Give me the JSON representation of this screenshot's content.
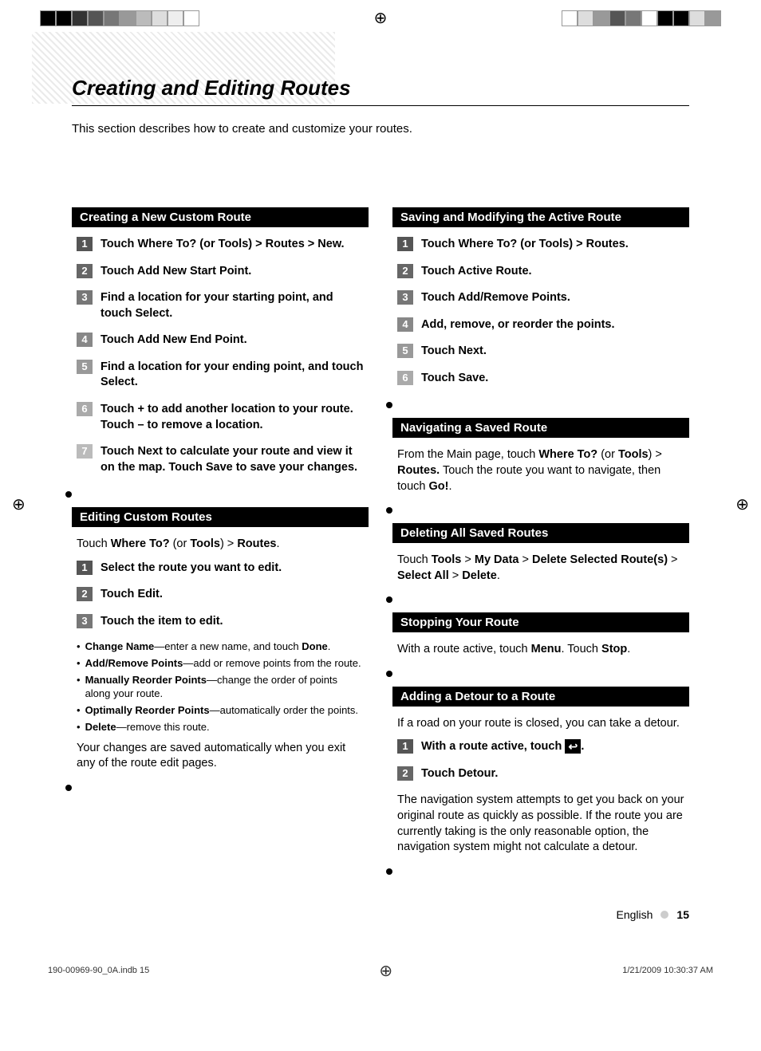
{
  "colorBars": {
    "left": [
      "#000000",
      "#000000",
      "#333333",
      "#555555",
      "#777777",
      "#999999",
      "#bbbbbb",
      "#dddddd",
      "#eeeeee",
      "#ffffff"
    ],
    "right": [
      "#ffffff",
      "#dddddd",
      "#999999",
      "#555555",
      "#777777",
      "#ffffff",
      "#000000",
      "#000000",
      "#dddddd",
      "#999999"
    ]
  },
  "stepColors": [
    "#555555",
    "#666666",
    "#777777",
    "#888888",
    "#999999",
    "#aaaaaa",
    "#bbbbbb"
  ],
  "pageTitle": "Creating and Editing Routes",
  "intro": "This section describes how to create and customize your routes.",
  "left": {
    "s1": {
      "header": "Creating a New Custom Route",
      "steps": [
        "Touch Where To? (or Tools) > Routes > New.",
        "Touch Add New Start Point.",
        "Find a location for your starting point, and touch Select.",
        "Touch Add New End Point.",
        "Find a location for your ending point, and touch Select.",
        "Touch + to add another location to your route. Touch – to remove a location.",
        "Touch Next to calculate your route and view it on the map. Touch Save to save your changes."
      ]
    },
    "s2": {
      "header": "Editing Custom Routes",
      "intro_pre": "Touch ",
      "intro_b1": "Where To?",
      "intro_mid": " (or ",
      "intro_b2": "Tools",
      "intro_mid2": ") > ",
      "intro_b3": "Routes",
      "intro_end": ".",
      "steps": [
        "Select the route you want to edit.",
        "Touch Edit.",
        "Touch the item to edit."
      ],
      "bullets": [
        {
          "b": "Change Name",
          "t": "—enter a new name, and touch ",
          "b2": "Done",
          "t2": "."
        },
        {
          "b": "Add/Remove Points",
          "t": "—add or remove points from the route."
        },
        {
          "b": "Manually Reorder Points",
          "t": "—change the order of points along your route."
        },
        {
          "b": "Optimally Reorder Points",
          "t": "—automatically order the points."
        },
        {
          "b": "Delete",
          "t": "—remove this route."
        }
      ],
      "outro": "Your changes are saved automatically when you exit any of the route edit pages."
    }
  },
  "right": {
    "s1": {
      "header": "Saving and Modifying the Active Route",
      "steps": [
        "Touch Where To? (or Tools) > Routes.",
        "Touch Active Route.",
        "Touch Add/Remove Points.",
        "Add, remove, or reorder the points.",
        "Touch Next.",
        "Touch Save."
      ]
    },
    "s2": {
      "header": "Navigating a Saved Route",
      "t1": "From the Main page, touch ",
      "b1": "Where To?",
      "t2": " (or ",
      "b2": "Tools",
      "t3": ") > ",
      "b3": "Routes.",
      "t4": "  Touch the route you want to navigate, then touch ",
      "b4": "Go!",
      "t5": "."
    },
    "s3": {
      "header": "Deleting All Saved Routes",
      "t1": "Touch ",
      "b1": "Tools",
      "t2": " > ",
      "b2": "My Data",
      "t3": " > ",
      "b3": "Delete Selected Route(s)",
      "t4": " > ",
      "b4": "Select All",
      "t5": " > ",
      "b5": "Delete",
      "t6": "."
    },
    "s4": {
      "header": "Stopping Your Route",
      "t1": "With a route active, touch ",
      "b1": "Menu",
      "t2": ". Touch ",
      "b2": "Stop",
      "t3": "."
    },
    "s5": {
      "header": "Adding a Detour to a Route",
      "intro": "If a road on your route is closed, you can take a detour.",
      "step1_pre": "With a route active, touch ",
      "step1_icon": "↩",
      "step1_post": ".",
      "step2": "Touch Detour.",
      "outro": "The navigation system attempts to get you back on your original route as quickly as possible. If the route you are currently taking is the only reasonable option, the navigation system might not calculate a detour."
    }
  },
  "footer": {
    "lang": "English",
    "page": "15"
  },
  "printFooter": {
    "left": "190-00969-90_0A.indb   15",
    "right": "1/21/2009   10:30:37 AM"
  }
}
